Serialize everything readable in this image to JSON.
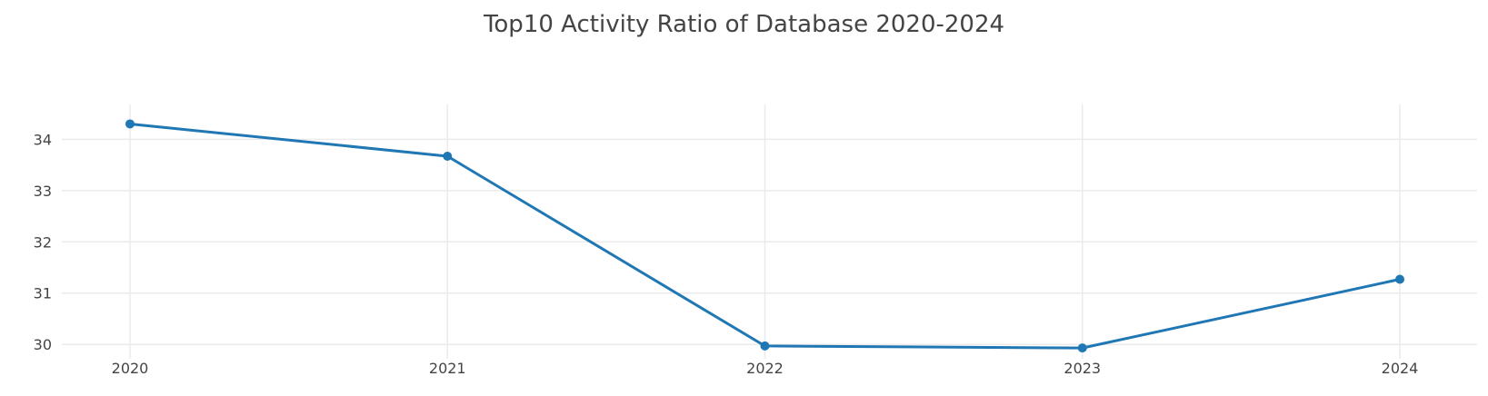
{
  "chart_data": {
    "type": "line",
    "title": "Top10 Activity Ratio of Database 2020-2024",
    "xlabel": "",
    "ylabel": "",
    "x": [
      "2020",
      "2021",
      "2022",
      "2023",
      "2024"
    ],
    "series": [
      {
        "values": [
          34.3,
          33.67,
          29.97,
          29.93,
          31.27
        ]
      }
    ],
    "yticks": [
      30,
      31,
      32,
      33,
      34
    ],
    "ylim": [
      29.72,
      34.68
    ],
    "grid": true,
    "legend": "none",
    "colors": {
      "line": "#1f77b4",
      "grid": "#ebebeb",
      "text": "#444444"
    }
  }
}
